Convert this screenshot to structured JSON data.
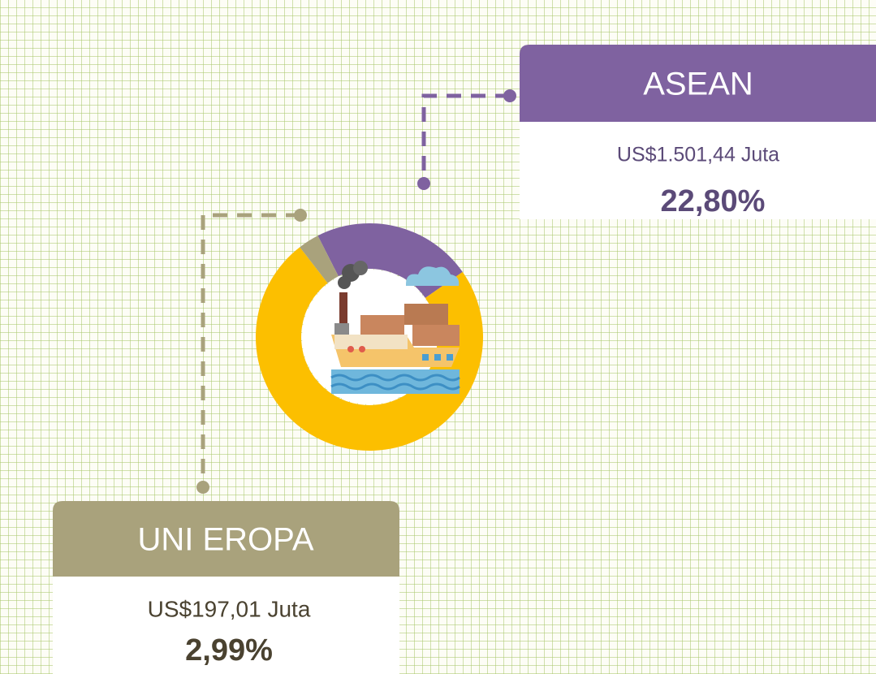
{
  "chart_data": {
    "type": "donut",
    "categories": [
      "ASEAN",
      null,
      "UNI EROPA"
    ],
    "values": [
      22.8,
      74.21,
      2.99
    ],
    "value_labels": [
      "22,80%",
      null,
      "2,99%"
    ],
    "amount_labels": [
      "US$1.501,44 Juta",
      null,
      "US$197,01 Juta"
    ],
    "colors": [
      "#7f62a0",
      "#fcbf00",
      "#a9a27c"
    ]
  }
}
